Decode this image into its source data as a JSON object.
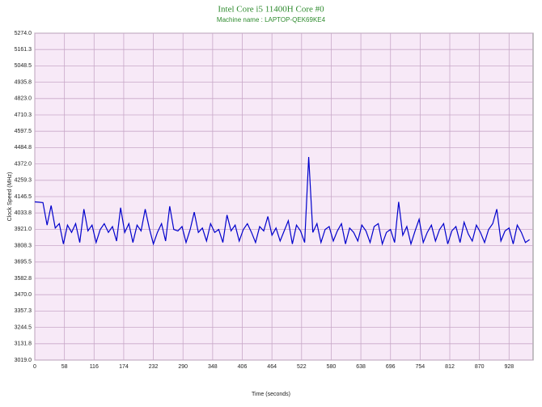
{
  "chart_data": {
    "type": "line",
    "title": "Intel Core i5 11400H Core #0",
    "subtitle": "Machine name : LAPTOP-QEK69KE4",
    "y_label": "Clock Speed (MHz)",
    "x_label": "Time (seconds)",
    "xlim": [
      0,
      975
    ],
    "xticks": [
      0,
      58,
      116,
      174,
      232,
      290,
      348,
      406,
      464,
      522,
      580,
      638,
      696,
      754,
      812,
      870,
      928
    ],
    "ylim": [
      3019,
      5274
    ],
    "yticks": [
      {
        "value": 3019,
        "label": "3019.0"
      },
      3131.8,
      3244.5,
      3357.3,
      {
        "value": 3470,
        "label": "3470.0"
      },
      3582.8,
      3695.5,
      3808.3,
      {
        "value": 3921,
        "label": "3921.0"
      },
      4033.8,
      4146.5,
      4259.3,
      {
        "value": 4372,
        "label": "4372.0"
      },
      4484.8,
      4597.5,
      4710.3,
      {
        "value": 4823,
        "label": "4823.0"
      },
      4935.8,
      5048.5,
      5161.3,
      {
        "value": 5274,
        "label": "5274.0"
      }
    ],
    "grid": true,
    "background": "#f7e9f7",
    "grid_color": "#c8a8c8",
    "series": [
      {
        "name": "Clock Speed",
        "color": "#0000cc",
        "x": [
          0,
          8,
          16,
          24,
          32,
          40,
          48,
          56,
          64,
          72,
          80,
          88,
          96,
          104,
          112,
          120,
          128,
          136,
          144,
          152,
          160,
          168,
          176,
          184,
          192,
          200,
          208,
          216,
          224,
          232,
          240,
          248,
          256,
          264,
          272,
          280,
          288,
          296,
          304,
          312,
          320,
          328,
          336,
          344,
          352,
          360,
          368,
          376,
          384,
          392,
          400,
          408,
          416,
          424,
          432,
          440,
          448,
          456,
          464,
          472,
          480,
          488,
          496,
          504,
          512,
          520,
          528,
          536,
          544,
          552,
          560,
          568,
          576,
          584,
          592,
          600,
          608,
          616,
          624,
          632,
          640,
          648,
          656,
          664,
          672,
          680,
          688,
          696,
          704,
          712,
          720,
          728,
          736,
          744,
          752,
          760,
          768,
          776,
          784,
          792,
          800,
          808,
          816,
          824,
          832,
          840,
          848,
          856,
          864,
          872,
          880,
          888,
          896,
          904,
          912,
          920,
          928,
          936,
          944,
          952,
          960,
          968
        ],
        "values": [
          4110,
          4108,
          4105,
          3950,
          4085,
          3930,
          3960,
          3820,
          3950,
          3900,
          3960,
          3830,
          4060,
          3910,
          3950,
          3830,
          3920,
          3960,
          3900,
          3940,
          3840,
          4070,
          3900,
          3960,
          3830,
          3950,
          3910,
          4060,
          3930,
          3820,
          3900,
          3960,
          3840,
          4080,
          3920,
          3910,
          3940,
          3830,
          3920,
          4040,
          3900,
          3930,
          3840,
          3960,
          3900,
          3920,
          3830,
          4020,
          3910,
          3950,
          3840,
          3920,
          3960,
          3900,
          3830,
          3940,
          3910,
          4010,
          3880,
          3930,
          3840,
          3910,
          3980,
          3820,
          3950,
          3910,
          3830,
          4420,
          3900,
          3960,
          3830,
          3920,
          3940,
          3840,
          3910,
          3960,
          3820,
          3930,
          3900,
          3840,
          3950,
          3910,
          3830,
          3940,
          3960,
          3820,
          3900,
          3920,
          3830,
          4110,
          3880,
          3940,
          3820,
          3910,
          3990,
          3830,
          3900,
          3950,
          3840,
          3920,
          3960,
          3820,
          3910,
          3940,
          3830,
          3970,
          3890,
          3840,
          3950,
          3900,
          3830,
          3920,
          3960,
          4060,
          3840,
          3910,
          3930,
          3820,
          3950,
          3900,
          3830,
          3850
        ]
      }
    ]
  }
}
